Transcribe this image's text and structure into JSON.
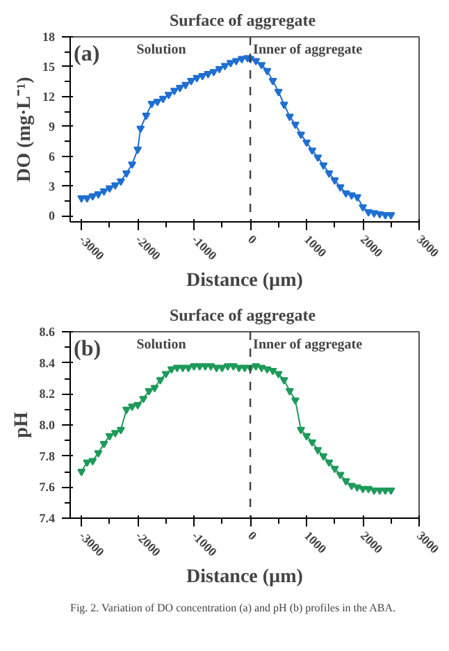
{
  "chart_data": [
    {
      "type": "line",
      "ylabel": "DO (mg·L⁻¹)",
      "xlabel": "Distance (µm)",
      "marker": "triangle",
      "line_style": "solid",
      "grid": false,
      "annotations": [
        "(a)",
        "Solution",
        "Inner of aggregate"
      ],
      "ref_lines": [
        {
          "axis": "x",
          "value": 0,
          "label": "Surface of  aggregate",
          "line_style": "dashed",
          "color": "#404040"
        }
      ],
      "xlim": [
        -3200,
        3000
      ],
      "xticks": [
        -3000,
        -2000,
        -1000,
        0,
        1000,
        2000,
        3000
      ],
      "ylim": [
        -0.6,
        18
      ],
      "yticks": [
        0,
        3,
        6,
        9,
        12,
        15,
        18
      ],
      "x": [
        -3000,
        -2900,
        -2800,
        -2700,
        -2600,
        -2500,
        -2400,
        -2300,
        -2200,
        -2100,
        -2000,
        -1950,
        -1850,
        -1750,
        -1650,
        -1550,
        -1450,
        -1350,
        -1250,
        -1150,
        -1050,
        -950,
        -850,
        -750,
        -650,
        -550,
        -450,
        -350,
        -250,
        -150,
        -50,
        0,
        100,
        200,
        300,
        400,
        500,
        600,
        700,
        800,
        900,
        1000,
        1100,
        1200,
        1300,
        1400,
        1500,
        1600,
        1700,
        1800,
        1900,
        2000,
        2100,
        2200,
        2300,
        2400,
        2500
      ],
      "series": [
        {
          "color": "#1f6fd0",
          "values": [
            1.8,
            1.8,
            2.0,
            2.2,
            2.5,
            2.8,
            3.1,
            3.5,
            4.3,
            5.2,
            6.7,
            8.8,
            10.1,
            11.3,
            11.5,
            11.8,
            12.2,
            12.6,
            12.9,
            13.2,
            13.6,
            13.9,
            14.1,
            14.3,
            14.5,
            14.8,
            15.1,
            15.4,
            15.6,
            15.8,
            15.9,
            15.8,
            15.6,
            15.2,
            14.6,
            13.6,
            12.5,
            11.2,
            10.0,
            9.2,
            8.2,
            7.4,
            6.6,
            5.9,
            5.1,
            4.3,
            3.6,
            2.9,
            2.3,
            2.1,
            1.9,
            0.9,
            0.4,
            0.3,
            0.2,
            0.1,
            0.1
          ]
        }
      ]
    },
    {
      "type": "line",
      "ylabel": "pH",
      "xlabel": "Distance (µm)",
      "marker": "triangle",
      "line_style": "solid",
      "grid": false,
      "annotations": [
        "(b)",
        "Solution",
        "Inner of aggregate",
        "Fig. 2. Variation of DO concentration (a) and pH (b) profiles in the ABA."
      ],
      "ref_lines": [
        {
          "axis": "x",
          "value": 0,
          "label": "Surface of  aggregate",
          "line_style": "dashed",
          "color": "#404040"
        }
      ],
      "xlim": [
        -3200,
        3000
      ],
      "xticks": [
        -3000,
        -2000,
        -1000,
        0,
        1000,
        2000,
        3000
      ],
      "ylim": [
        7.4,
        8.6
      ],
      "yticks": [
        7.4,
        7.6,
        7.8,
        {
          "value": 8,
          "label": "8.0"
        },
        8.2,
        8.4,
        8.6
      ],
      "x": [
        -3000,
        -2900,
        -2800,
        -2700,
        -2600,
        -2500,
        -2400,
        -2300,
        -2200,
        -2100,
        -2000,
        -1900,
        -1800,
        -1700,
        -1600,
        -1500,
        -1400,
        -1300,
        -1200,
        -1100,
        -1000,
        -900,
        -800,
        -700,
        -600,
        -500,
        -400,
        -300,
        -200,
        -100,
        0,
        100,
        200,
        300,
        400,
        500,
        600,
        700,
        800,
        900,
        1000,
        1100,
        1200,
        1300,
        1400,
        1500,
        1600,
        1700,
        1800,
        1900,
        2000,
        2100,
        2200,
        2300,
        2400,
        2500
      ],
      "series": [
        {
          "color": "#1f9a5a",
          "values": [
            7.7,
            7.76,
            7.77,
            7.82,
            7.88,
            7.93,
            7.95,
            7.97,
            8.1,
            8.12,
            8.13,
            8.17,
            8.22,
            8.24,
            8.29,
            8.33,
            8.36,
            8.37,
            8.37,
            8.37,
            8.38,
            8.38,
            8.38,
            8.38,
            8.37,
            8.37,
            8.38,
            8.38,
            8.37,
            8.37,
            8.37,
            8.38,
            8.37,
            8.36,
            8.35,
            8.33,
            8.29,
            8.22,
            8.16,
            7.97,
            7.93,
            7.89,
            7.84,
            7.8,
            7.76,
            7.72,
            7.68,
            7.64,
            7.61,
            7.6,
            7.59,
            7.59,
            7.58,
            7.58,
            7.58,
            7.58
          ]
        }
      ]
    }
  ]
}
